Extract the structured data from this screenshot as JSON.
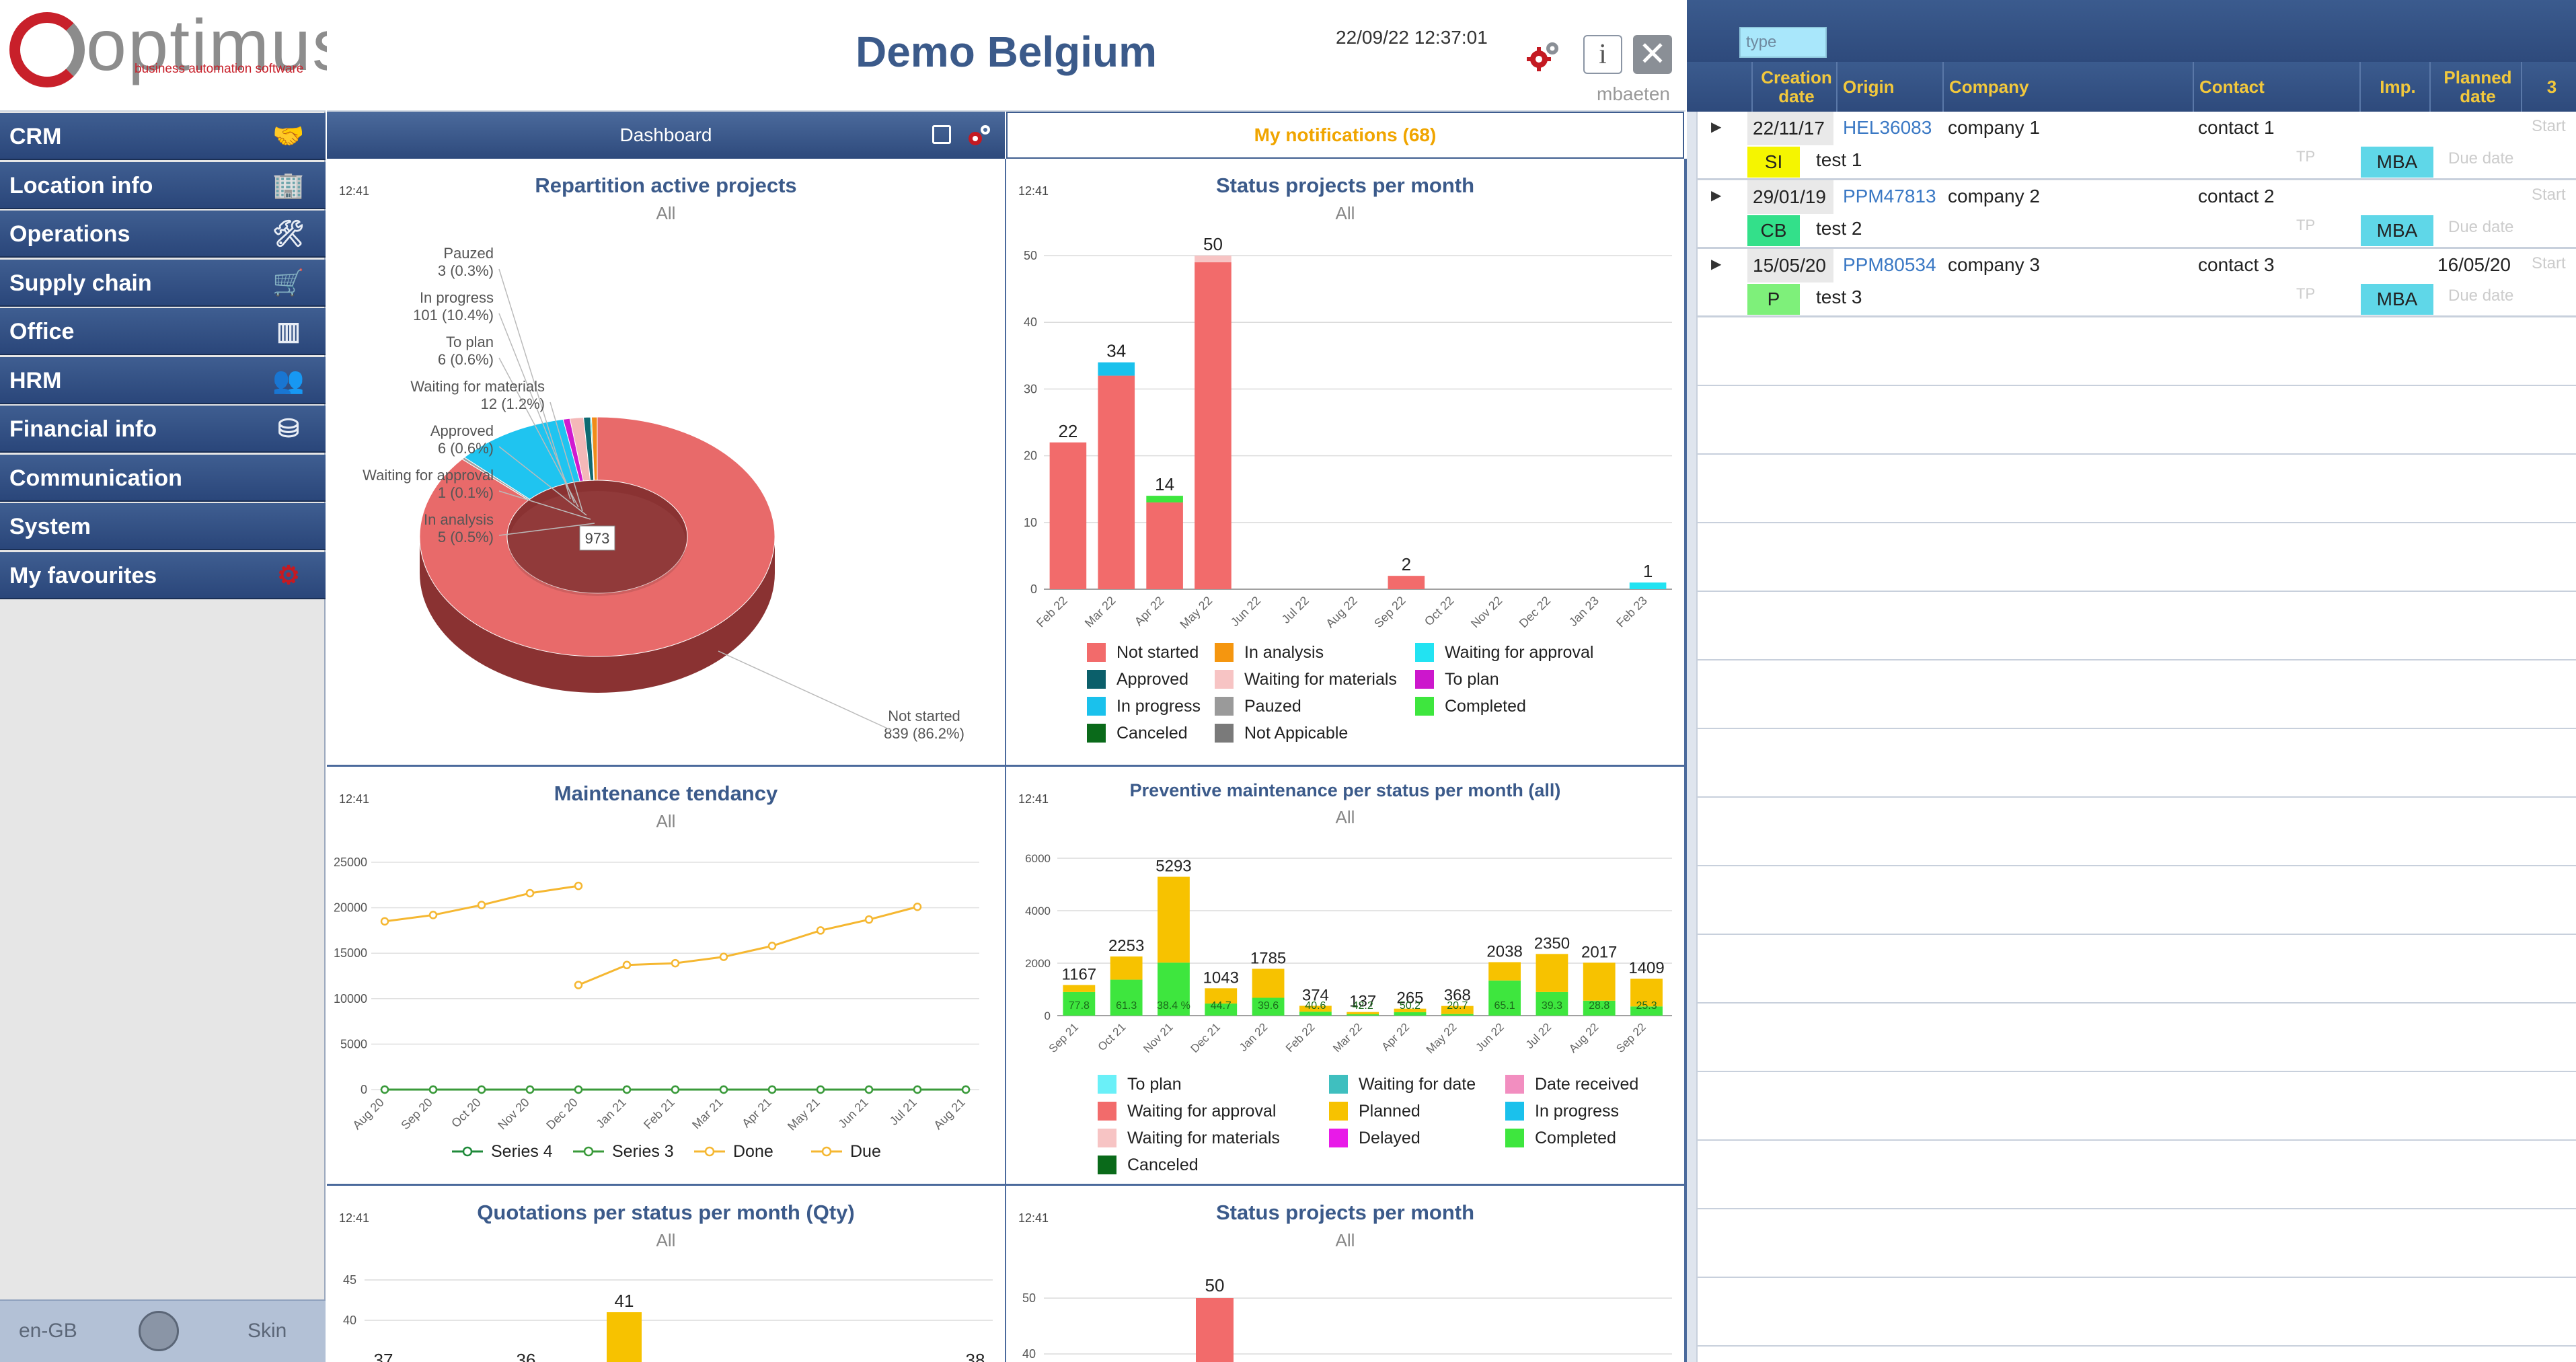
{
  "logo": {
    "word": "optimus",
    "tagline": "business automation software"
  },
  "sidebar": {
    "items": [
      {
        "label": "CRM",
        "icon": "handshake-icon"
      },
      {
        "label": "Location info",
        "icon": "building-icon"
      },
      {
        "label": "Operations",
        "icon": "tools-icon"
      },
      {
        "label": "Supply chain",
        "icon": "cart-icon"
      },
      {
        "label": "Office",
        "icon": "binders-icon"
      },
      {
        "label": "HRM",
        "icon": "people-icon"
      },
      {
        "label": "Financial info",
        "icon": "coins-icon"
      },
      {
        "label": "Communication",
        "icon": ""
      },
      {
        "label": "System",
        "icon": ""
      },
      {
        "label": "My favourites",
        "icon": "gears-icon"
      }
    ],
    "footer": {
      "lang": "en-GB",
      "skin": "Skin"
    }
  },
  "header": {
    "title": "Demo Belgium",
    "datetime": "22/09/22 12:37:01",
    "user": "mbaeten",
    "info": "i",
    "close": "✕"
  },
  "tabs": {
    "dashboard": "Dashboard",
    "notifications": "My notifications (68)"
  },
  "panels": {
    "p1": {
      "time": "12:41",
      "title": "Repartition active projects",
      "sub": "All"
    },
    "p2": {
      "time": "12:41",
      "title": "Status projects per month",
      "sub": "All"
    },
    "p3": {
      "time": "12:41",
      "title": "Maintenance tendancy",
      "sub": "All"
    },
    "p4": {
      "time": "12:41",
      "title": "Preventive maintenance per status per month (all)",
      "sub": "All"
    },
    "p5": {
      "time": "12:41",
      "title": "Quotations per status per month (Qty)",
      "sub": "All"
    },
    "p6": {
      "time": "12:41",
      "title": "Status projects per month",
      "sub": "All"
    }
  },
  "chart_data": [
    {
      "type": "pie",
      "title": "Repartition active projects",
      "center_label": "973",
      "slices": [
        {
          "label": "Not started",
          "value": 839,
          "text": "839 (86.2%)",
          "color": "#e86a6a"
        },
        {
          "label": "Pauzed",
          "value": 3,
          "text": "3 (0.3%)",
          "color": "#a0a0a0"
        },
        {
          "label": "In progress",
          "value": 101,
          "text": "101 (10.4%)",
          "color": "#1fc4f0"
        },
        {
          "label": "To plan",
          "value": 6,
          "text": "6 (0.6%)",
          "color": "#d01ad0"
        },
        {
          "label": "Waiting for materials",
          "value": 12,
          "text": "12 (1.2%)",
          "color": "#f4b8b8"
        },
        {
          "label": "Approved",
          "value": 6,
          "text": "6 (0.6%)",
          "color": "#0f6a72"
        },
        {
          "label": "Waiting for approval",
          "value": 1,
          "text": "1 (0.1%)",
          "color": "#18e8f0"
        },
        {
          "label": "In analysis",
          "value": 5,
          "text": "5 (0.5%)",
          "color": "#f08c1a"
        }
      ]
    },
    {
      "type": "bar",
      "title": "Status projects per month",
      "categories": [
        "Feb 22",
        "Mar 22",
        "Apr 22",
        "May 22",
        "Jun 22",
        "Jul 22",
        "Aug 22",
        "Sep 22",
        "Oct 22",
        "Nov 22",
        "Dec 22",
        "Jan 23",
        "Feb 23"
      ],
      "ylim": [
        0,
        50
      ],
      "yticks": [
        0,
        10,
        20,
        30,
        40,
        50
      ],
      "series": [
        {
          "name": "Not started",
          "color": "#f26b6b",
          "values": [
            22,
            32,
            13,
            49,
            0,
            0,
            0,
            2,
            0,
            0,
            0,
            0,
            0
          ]
        },
        {
          "name": "In analysis",
          "color": "#f5960f",
          "values": [
            0,
            0,
            0,
            0,
            0,
            0,
            0,
            0,
            0,
            0,
            0,
            0,
            0
          ]
        },
        {
          "name": "Waiting for approval",
          "color": "#22e3f2",
          "values": [
            0,
            0,
            0,
            0,
            0,
            0,
            0,
            0,
            0,
            0,
            0,
            0,
            1
          ]
        },
        {
          "name": "Approved",
          "color": "#0b5f6a",
          "values": [
            0,
            0,
            0,
            0,
            0,
            0,
            0,
            0,
            0,
            0,
            0,
            0,
            0
          ]
        },
        {
          "name": "Waiting for materials",
          "color": "#f7c4c4",
          "values": [
            0,
            0,
            0,
            1,
            0,
            0,
            0,
            0,
            0,
            0,
            0,
            0,
            0
          ]
        },
        {
          "name": "To plan",
          "color": "#cc17cc",
          "values": [
            0,
            0,
            0,
            0,
            0,
            0,
            0,
            0,
            0,
            0,
            0,
            0,
            0
          ]
        },
        {
          "name": "In progress",
          "color": "#1ac1ec",
          "values": [
            0,
            2,
            0,
            0,
            0,
            0,
            0,
            0,
            0,
            0,
            0,
            0,
            0
          ]
        },
        {
          "name": "Pauzed",
          "color": "#9a9a9a",
          "values": [
            0,
            0,
            0,
            0,
            0,
            0,
            0,
            0,
            0,
            0,
            0,
            0,
            0
          ]
        },
        {
          "name": "Completed",
          "color": "#3ee63e",
          "values": [
            0,
            0,
            1,
            0,
            0,
            0,
            0,
            0,
            0,
            0,
            0,
            0,
            0
          ]
        },
        {
          "name": "Canceled",
          "color": "#0a6a1a",
          "values": [
            0,
            0,
            0,
            0,
            0,
            0,
            0,
            0,
            0,
            0,
            0,
            0,
            0
          ]
        },
        {
          "name": "Not Appicable",
          "color": "#7a7a7a",
          "values": [
            0,
            0,
            0,
            0,
            0,
            0,
            0,
            0,
            0,
            0,
            0,
            0,
            0
          ]
        }
      ],
      "totals": [
        "22",
        "34",
        "14",
        "50",
        "",
        "",
        "",
        "2",
        "",
        "",
        "",
        "",
        "1"
      ],
      "legend": [
        "Not started",
        "In analysis",
        "Waiting for approval",
        "Approved",
        "Waiting for materials",
        "To plan",
        "In progress",
        "Pauzed",
        "Completed",
        "Canceled",
        "Not Appicable"
      ]
    },
    {
      "type": "line",
      "title": "Maintenance tendancy",
      "categories": [
        "Aug 20",
        "Sep 20",
        "Oct 20",
        "Nov 20",
        "Dec 20",
        "Jan 21",
        "Feb 21",
        "Mar 21",
        "Apr 21",
        "May 21",
        "Jun 21",
        "Jul 21",
        "Aug 21"
      ],
      "ylim": [
        0,
        25000
      ],
      "yticks": [
        0,
        5000,
        10000,
        15000,
        20000,
        25000
      ],
      "series": [
        {
          "name": "Series 4",
          "color": "#1f8a3a",
          "values": [
            0,
            0,
            0,
            0,
            0,
            0,
            0,
            0,
            0,
            0,
            0,
            0,
            0
          ]
        },
        {
          "name": "Series 3",
          "color": "#3a9a3a",
          "values": [
            0,
            0,
            0,
            0,
            0,
            0,
            0,
            0,
            0,
            0,
            0,
            0,
            0
          ]
        },
        {
          "name": "Done",
          "color": "#f5b731",
          "values": [
            18500,
            19200,
            20300,
            21600,
            22400,
            null,
            null,
            null,
            null,
            null,
            null,
            null,
            null
          ]
        },
        {
          "name": "Due",
          "color": "#f5b731",
          "values": [
            null,
            null,
            null,
            null,
            11500,
            13700,
            13900,
            14600,
            15800,
            17500,
            18700,
            20100,
            null
          ]
        }
      ]
    },
    {
      "type": "bar",
      "title": "Preventive maintenance per status per month (all)",
      "categories": [
        "Sep 21",
        "Oct 21",
        "Nov 21",
        "Dec 21",
        "Jan 22",
        "Feb 22",
        "Mar 22",
        "Apr 22",
        "May 22",
        "Jun 22",
        "Jul 22",
        "Aug 22",
        "Sep 22"
      ],
      "ylim": [
        0,
        6000
      ],
      "yticks": [
        0,
        2000,
        4000,
        6000
      ],
      "series": [
        {
          "name": "Completed",
          "color": "#3ee63e",
          "values": [
            900,
            1370,
            2020,
            460,
            680,
            150,
            50,
            130,
            60,
            1340,
            900,
            570,
            350
          ]
        },
        {
          "name": "Planned",
          "color": "#f7c200",
          "values": [
            267,
            883,
            3273,
            583,
            1105,
            224,
            87,
            135,
            308,
            698,
            1450,
            1447,
            1059
          ]
        }
      ],
      "totals": [
        "1167",
        "2253",
        "5293",
        "1043",
        "1785",
        "374",
        "137",
        "265",
        "368",
        "2038",
        "2350",
        "2017",
        "1409"
      ],
      "inner_labels": [
        "77.8",
        "61.3",
        "38.4 %",
        "44.7",
        "39.6",
        "40.6",
        "42.2",
        "50.2",
        "20.7",
        "65.1",
        "39.3",
        "28.8",
        "25.3"
      ],
      "legend": [
        "To plan",
        "Waiting for date",
        "Date received",
        "Waiting for approval",
        "Planned",
        "In progress",
        "Waiting for materials",
        "Delayed",
        "Completed",
        "Canceled"
      ],
      "legend_colors": [
        "#6af0f8",
        "#3fbfbf",
        "#f28ec0",
        "#f26b6b",
        "#f7c200",
        "#1ac1ec",
        "#f7c4c4",
        "#e81ae8",
        "#3ee63e",
        "#0a6a1a"
      ]
    },
    {
      "type": "bar",
      "title": "Quotations per status per month (Qty)",
      "yticks": [
        40,
        45
      ],
      "totals": [
        "37",
        "36",
        "41",
        "38"
      ]
    },
    {
      "type": "bar",
      "title": "Status projects per month",
      "yticks": [
        40,
        50
      ],
      "totals": [
        "50"
      ]
    }
  ],
  "notifications": {
    "search_placeholder": "type",
    "columns": [
      "Creation date",
      "Origin",
      "Company",
      "Contact",
      "Imp.",
      "Planned date",
      "3"
    ],
    "rows": [
      {
        "date": "22/11/17",
        "origin": "HEL36083",
        "company": "company 1",
        "contact": "contact 1",
        "planned": "",
        "start": "Start",
        "badge": "SI",
        "badge_color": "#f5f500",
        "subject": "test 1",
        "tp": "TP",
        "imp": "MBA",
        "due": "Due date"
      },
      {
        "date": "29/01/19",
        "origin": "PPM47813",
        "company": "company 2",
        "contact": "contact 2",
        "planned": "",
        "start": "Start",
        "badge": "CB",
        "badge_color": "#33e08a",
        "subject": "test 2",
        "tp": "TP",
        "imp": "MBA",
        "due": "Due date"
      },
      {
        "date": "15/05/20",
        "origin": "PPM80534",
        "company": "company 3",
        "contact": "contact 3",
        "planned": "16/05/20",
        "start": "Start",
        "badge": "P",
        "badge_color": "#7ef07a",
        "subject": "test 3",
        "tp": "TP",
        "imp": "MBA",
        "due": "Due date"
      }
    ]
  }
}
